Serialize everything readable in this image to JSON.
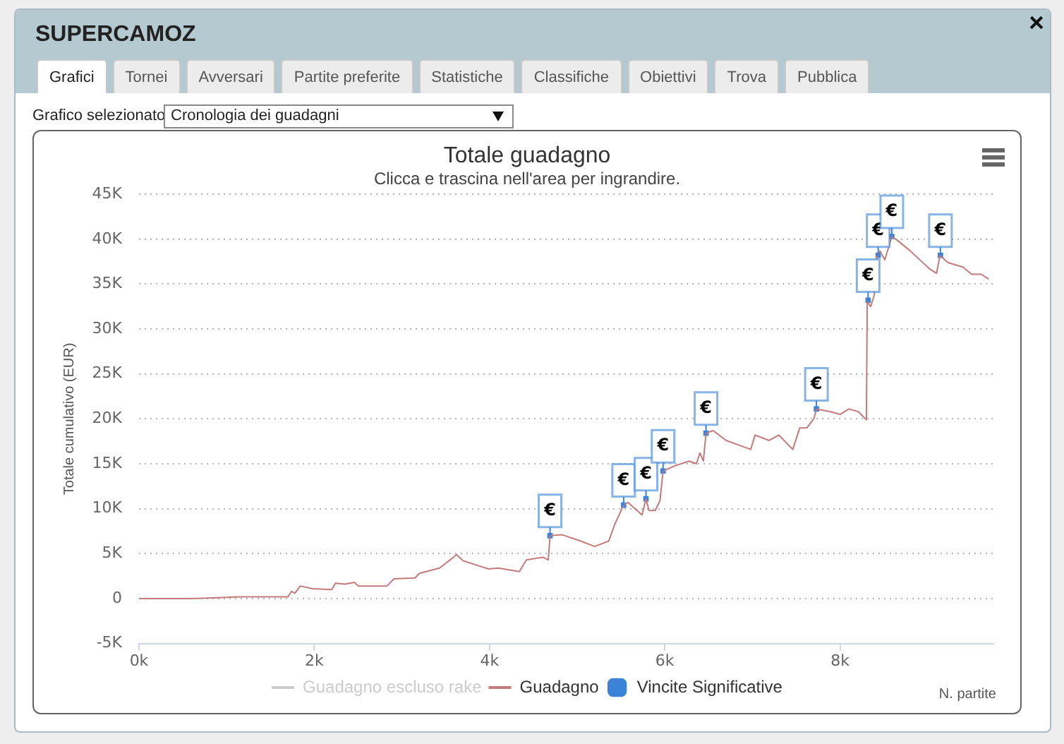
{
  "chart_data": {
    "type": "line",
    "title": "Totale guadagno",
    "subtitle": "Clicca e trascina nell'area per ingrandire.",
    "xlabel": "N. partite",
    "ylabel": "Totale cumulativo (EUR)",
    "x": [
      0,
      600,
      900,
      1150,
      1700,
      1740,
      1780,
      1840,
      1980,
      2200,
      2240,
      2350,
      2460,
      2500,
      2830,
      2910,
      3150,
      3200,
      3430,
      3590,
      3620,
      3700,
      3860,
      3990,
      4100,
      4340,
      4420,
      4610,
      4670,
      4690,
      4830,
      5040,
      5200,
      5360,
      5430,
      5530,
      5580,
      5740,
      5785,
      5820,
      5890,
      5945,
      5980,
      6120,
      6280,
      6360,
      6400,
      6440,
      6470,
      6550,
      6700,
      6870,
      6980,
      7030,
      7190,
      7300,
      7460,
      7540,
      7620,
      7700,
      7730,
      7890,
      8000,
      8100,
      8210,
      8300,
      8310,
      8350,
      8390,
      8420,
      8455,
      8510,
      8560,
      8590,
      8650,
      8800,
      8910,
      9020,
      9100,
      9140,
      9230,
      9400,
      9500,
      9610,
      9690
    ],
    "series": [
      {
        "name": "Guadagno escluso rake",
        "color": "#cccccc",
        "values": [
          null,
          null,
          null,
          null,
          null,
          null,
          null,
          null,
          null,
          null,
          null,
          null,
          null,
          null,
          null,
          null,
          null,
          null,
          null,
          null,
          null,
          null,
          null,
          null,
          null,
          null,
          null,
          null,
          null,
          null,
          null,
          null,
          null,
          null,
          null,
          null,
          null,
          null,
          null,
          null,
          null,
          null,
          null,
          null,
          null,
          null,
          null,
          null,
          null,
          null,
          null,
          null,
          null,
          null,
          null,
          null,
          null,
          null,
          null,
          null,
          null,
          null,
          null,
          null,
          null,
          null,
          null,
          null,
          null,
          null,
          null,
          null,
          null,
          null,
          null,
          null,
          null,
          null,
          null,
          null,
          null,
          null,
          null,
          null,
          null
        ]
      },
      {
        "name": "Guadagno",
        "color": "#c47b7b",
        "values": [
          0,
          0,
          100,
          200,
          200,
          800,
          600,
          1400,
          1100,
          1000,
          1700,
          1600,
          1800,
          1400,
          1400,
          2200,
          2300,
          2800,
          3400,
          4600,
          4900,
          4200,
          3700,
          3300,
          3400,
          3000,
          4300,
          4600,
          4300,
          7000,
          7100,
          6400,
          5800,
          6400,
          8300,
          10400,
          10700,
          9300,
          11100,
          9800,
          9800,
          10900,
          14200,
          14800,
          15300,
          15000,
          16200,
          15300,
          18400,
          18700,
          17600,
          17000,
          16600,
          18200,
          17600,
          18200,
          16600,
          19000,
          19000,
          20000,
          21100,
          20800,
          20500,
          21100,
          20800,
          19900,
          33000,
          32500,
          33800,
          38000,
          38700,
          37700,
          39300,
          40300,
          39900,
          38700,
          37700,
          36700,
          36200,
          38200,
          37400,
          36900,
          36100,
          36100,
          35600
        ]
      },
      {
        "name": "Vincite Significative",
        "type": "scatter",
        "marker": "square",
        "color": "#3b82d9",
        "x": [
          4690,
          5530,
          5785,
          5980,
          6470,
          7730,
          8320,
          8435,
          8590,
          9145
        ],
        "values": [
          7000,
          10400,
          11100,
          14200,
          18400,
          21100,
          33200,
          38200,
          40300,
          38200
        ],
        "value_labels": [
          "€",
          "€",
          "€",
          "€",
          "€",
          "€",
          "€",
          "€",
          "€",
          "€"
        ]
      }
    ],
    "xlim": [
      0,
      9750
    ],
    "xticks": [
      {
        "value": 0,
        "label": "0k"
      },
      {
        "value": 2000,
        "label": "2k"
      },
      {
        "value": 4000,
        "label": "4k"
      },
      {
        "value": 6000,
        "label": "6k"
      },
      {
        "value": 8000,
        "label": "8k"
      }
    ],
    "ylim": [
      -5000,
      45000
    ],
    "yticks": [
      {
        "value": -5000,
        "label": "-5K"
      },
      0,
      {
        "value": 5000,
        "label": "5K"
      },
      {
        "value": 10000,
        "label": "10K"
      },
      {
        "value": 15000,
        "label": "15K"
      },
      {
        "value": 20000,
        "label": "20K"
      },
      {
        "value": 25000,
        "label": "25K"
      },
      {
        "value": 30000,
        "label": "30K"
      },
      {
        "value": 35000,
        "label": "35K"
      },
      {
        "value": 40000,
        "label": "40K"
      },
      {
        "value": 45000,
        "label": "45K"
      }
    ],
    "grid": "y",
    "legend": "bottom",
    "marker": "none",
    "annotations": [
      "SUPERCAMOZ",
      "Grafici",
      "Tornei",
      "Avversari",
      "Partite preferite",
      "Statistiche",
      "Classifiche",
      "Obiettivi",
      "Trova",
      "Pubblica",
      "Grafico selezionato",
      "Cronologia dei guadagni"
    ]
  }
}
